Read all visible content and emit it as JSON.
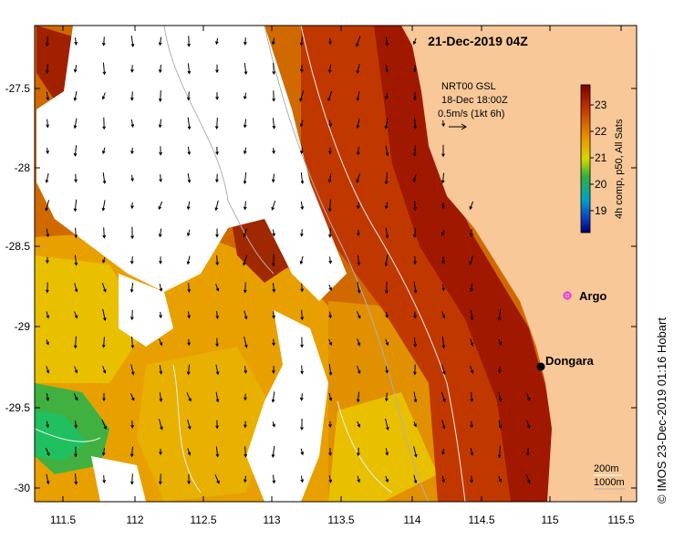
{
  "map": {
    "title": "21-Dec-2019 04Z",
    "lon_ticks": [
      "111.5",
      "112",
      "112.5",
      "113",
      "113.5",
      "114",
      "114.5",
      "115",
      "115.5"
    ],
    "lat_ticks": [
      "-27.5",
      "-28",
      "-28.5",
      "-29",
      "-29.5",
      "-30"
    ],
    "current_legend": {
      "line1": "NRT00 GSL",
      "line2": "18-Dec 18:00Z",
      "line3": "0.5m/s (1kt 6h)"
    },
    "colorbar": {
      "label": "4h comp, p50, All Sats",
      "ticks": [
        "23",
        "22",
        "21",
        "20",
        "19"
      ],
      "colors": [
        "#a01000",
        "#d05000",
        "#e8a000",
        "#d8d800",
        "#40c040",
        "#00a0c0",
        "#1040c0",
        "#000070"
      ]
    },
    "places": [
      {
        "name": "Argo",
        "marker_color": "#e040e0"
      },
      {
        "name": "Dongara",
        "marker_color": "#000000"
      }
    ],
    "isobaths": {
      "line1": "200m",
      "line2": "1000m"
    },
    "credit": "© IMOS 23-Dec-2019 01:16 Hobart",
    "land_color": "#f8c898"
  }
}
